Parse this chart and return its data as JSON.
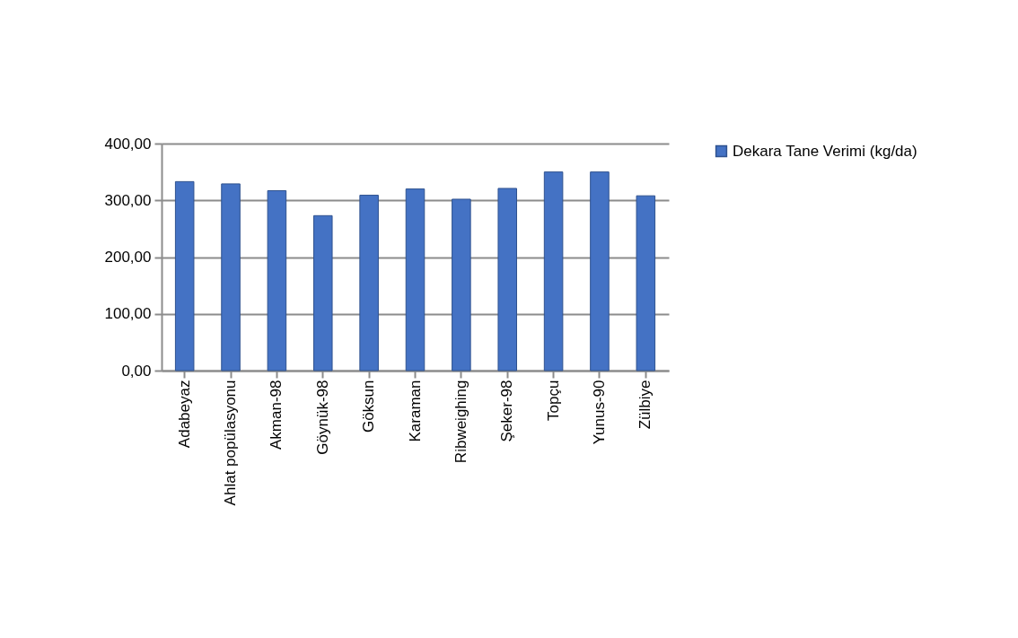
{
  "chart_data": {
    "type": "bar",
    "categories": [
      "Adabeyaz",
      "Ahlat popülasyonu",
      "Akman-98",
      "Göynük-98",
      "Göksun",
      "Karaman",
      "Ribweighing",
      "Şeker-98",
      "Topçu",
      "Yunus-90",
      "Zülbiye"
    ],
    "series": [
      {
        "name": "Dekara Tane Verimi (kg/da)",
        "color": "#4472c4",
        "values": [
          333,
          329,
          317,
          273,
          309,
          320,
          302,
          321,
          350,
          350,
          308
        ]
      }
    ],
    "ylim": [
      0,
      400
    ],
    "yticks": [
      {
        "value": 0,
        "label": "0,00"
      },
      {
        "value": 100,
        "label": "100,00"
      },
      {
        "value": 200,
        "label": "200,00"
      },
      {
        "value": 300,
        "label": "300,00"
      },
      {
        "value": 400,
        "label": "400,00"
      }
    ],
    "grid": "y",
    "legend": "right"
  }
}
